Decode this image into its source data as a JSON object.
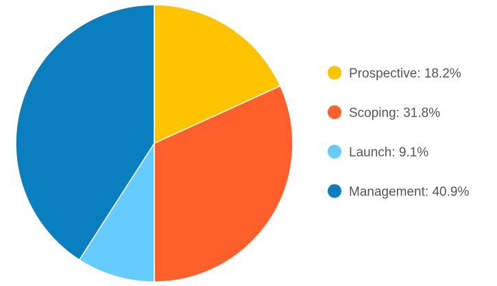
{
  "chart_data": {
    "type": "pie",
    "title": "",
    "legend_position": "right",
    "slices": [
      {
        "label": "Prospective",
        "value": 18.2,
        "display": "Prospective: 18.2%",
        "color": "#FFC400"
      },
      {
        "label": "Scoping",
        "value": 31.8,
        "display": "Scoping: 31.8%",
        "color": "#FF5F2A"
      },
      {
        "label": "Launch",
        "value": 9.1,
        "display": "Launch: 9.1%",
        "color": "#66CCFF"
      },
      {
        "label": "Management",
        "value": 40.9,
        "display": "Management: 40.9%",
        "color": "#0A7FC0"
      }
    ]
  }
}
